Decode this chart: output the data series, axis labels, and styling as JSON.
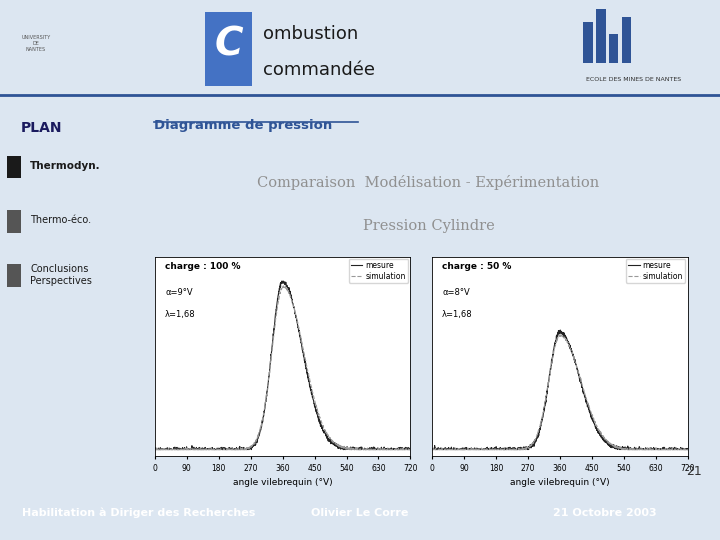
{
  "title_letter": "C",
  "title_text1": "ombustion",
  "title_text2": "commandée",
  "plan_label": "PLAN",
  "plan_items": [
    "Thermodyn.",
    "Thermo-éco.",
    "Conclusions\nPerspectives"
  ],
  "plan_active": 0,
  "section_title": "Diagramme de pression",
  "content_title_line1": "Comparaison  Modélisation - Expérimentation",
  "content_title_line2": "Pression Cylindre",
  "plot1_label1": "charge : 100 %",
  "plot1_label2": "α=9°V",
  "plot1_label3": "λ=1,68",
  "plot2_label1": "charge : 50 %",
  "plot2_label2": "α=8°V",
  "plot2_label3": "λ=1,68",
  "xlabel": "angle vilebrequin (°V)",
  "legend_mesure": "mesure",
  "legend_simulation": "simulation",
  "xticks": [
    0,
    90,
    180,
    270,
    360,
    450,
    540,
    630,
    720
  ],
  "footer_left": "Habilitation à Diriger des Recherches",
  "footer_center": "Olivier Le Corre",
  "footer_right": "21 Octobre 2003",
  "page_number": "21",
  "bg_light": "#dce6f1",
  "bg_sidebar": "#7ba7d4",
  "bg_footer": "#3a5f9f",
  "title_box_color": "#4472c4",
  "content_title_color": "#909090",
  "section_title_color": "#2f5496",
  "separator_color": "#2f5496"
}
